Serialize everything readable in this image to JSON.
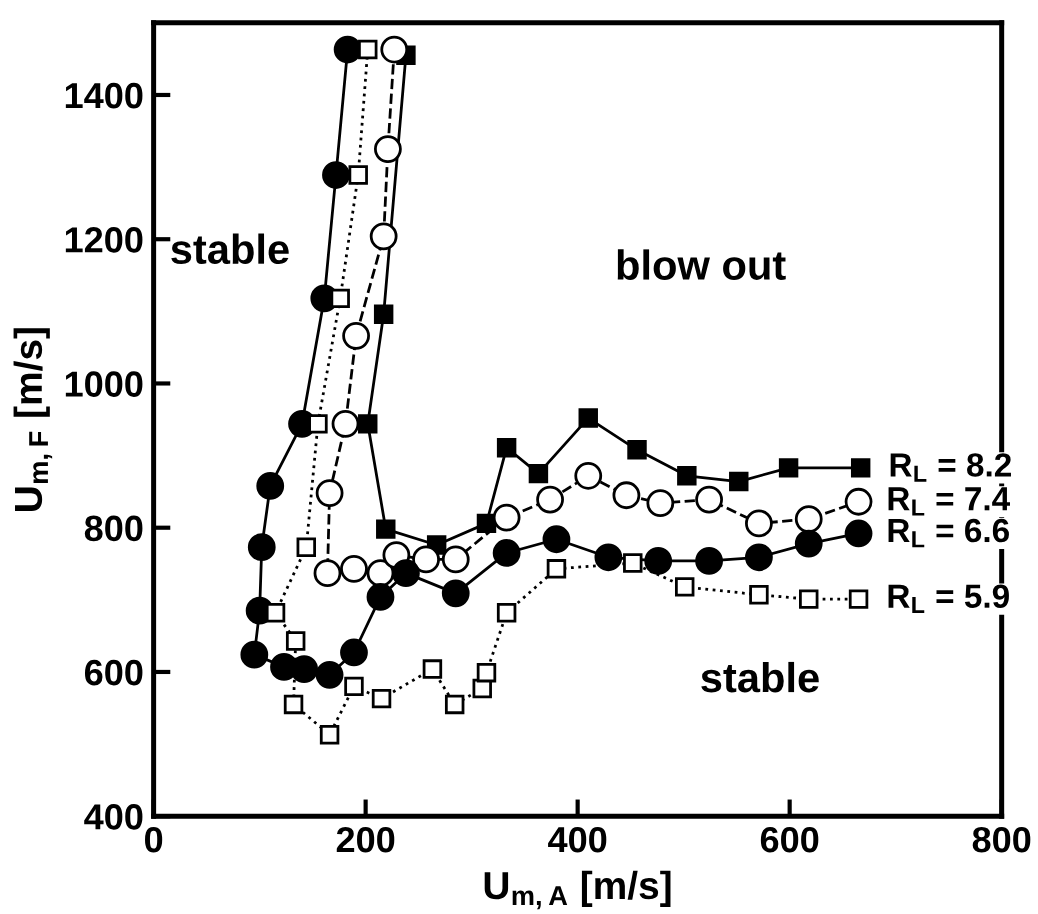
{
  "chart_data": {
    "type": "line",
    "xlabel": "U$_{m,A}$ [m/s]",
    "ylabel": "U$_{m,F}$ [m/s]",
    "xlim": [
      0,
      800
    ],
    "xticks": [
      0,
      200,
      400,
      600,
      800
    ],
    "ylim": [
      400,
      1500
    ],
    "yticks": [
      400,
      600,
      800,
      1000,
      1200,
      1400
    ],
    "grid": false,
    "legend": false,
    "annotations": [
      "stable",
      "blow out",
      "stable"
    ],
    "series": [
      {
        "name": "R$_{L}$ = 8.2",
        "color": "#000000",
        "marker": "square",
        "line_style": "solid",
        "x": [
          238,
          217,
          202,
          219,
          267,
          314,
          333,
          363,
          410,
          456,
          503,
          552,
          599,
          667
        ],
        "values": [
          1455,
          1096,
          944,
          798,
          776,
          806,
          911,
          875,
          952,
          908,
          872,
          864,
          883,
          883
        ]
      },
      {
        "name": "R$_{L}$ = 7.4",
        "color": "#000000",
        "marker": "circle",
        "line_style": "dashed",
        "x": [
          227,
          221,
          217,
          191,
          181,
          166,
          164,
          189,
          214,
          229,
          257,
          285,
          333,
          374,
          410,
          446,
          478,
          524,
          571,
          618,
          665
        ],
        "values": [
          1463,
          1325,
          1204,
          1066,
          944,
          848,
          737,
          743,
          737,
          762,
          756,
          756,
          814,
          839,
          872,
          845,
          834,
          839,
          806,
          812,
          836
        ]
      },
      {
        "name": "R$_{L}$ = 6.6",
        "color": "#000000",
        "marker": "circle",
        "line_style": "solid",
        "x": [
          183,
          172,
          161,
          140,
          110,
          102,
          100,
          95,
          123,
          142,
          166,
          189,
          214,
          238,
          285,
          333,
          380,
          429,
          476,
          524,
          571,
          618,
          665
        ],
        "values": [
          1463,
          1289,
          1118,
          944,
          858,
          773,
          685,
          624,
          607,
          604,
          596,
          627,
          704,
          737,
          709,
          765,
          784,
          759,
          754,
          754,
          759,
          778,
          792
        ]
      },
      {
        "name": "R$_{L}$ = 5.9",
        "color": "#000000",
        "marker": "square",
        "line_style": "dotted",
        "x": [
          202,
          193,
          176,
          155,
          144,
          115,
          134,
          132,
          166,
          189,
          215,
          263,
          284,
          310,
          314,
          333,
          380,
          452,
          501,
          571,
          618,
          665
        ],
        "values": [
          1463,
          1289,
          1118,
          944,
          773,
          682,
          643,
          555,
          513,
          580,
          563,
          604,
          555,
          577,
          599,
          682,
          743,
          751,
          718,
          707,
          701,
          701
        ]
      }
    ]
  }
}
